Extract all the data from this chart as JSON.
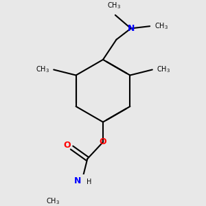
{
  "background_color": "#e8e8e8",
  "bond_color": "#000000",
  "atom_colors": {
    "N": "#0000ff",
    "O": "#ff0000",
    "C": "#000000",
    "H": "#000000"
  },
  "figsize": [
    3.0,
    3.0
  ],
  "dpi": 100
}
